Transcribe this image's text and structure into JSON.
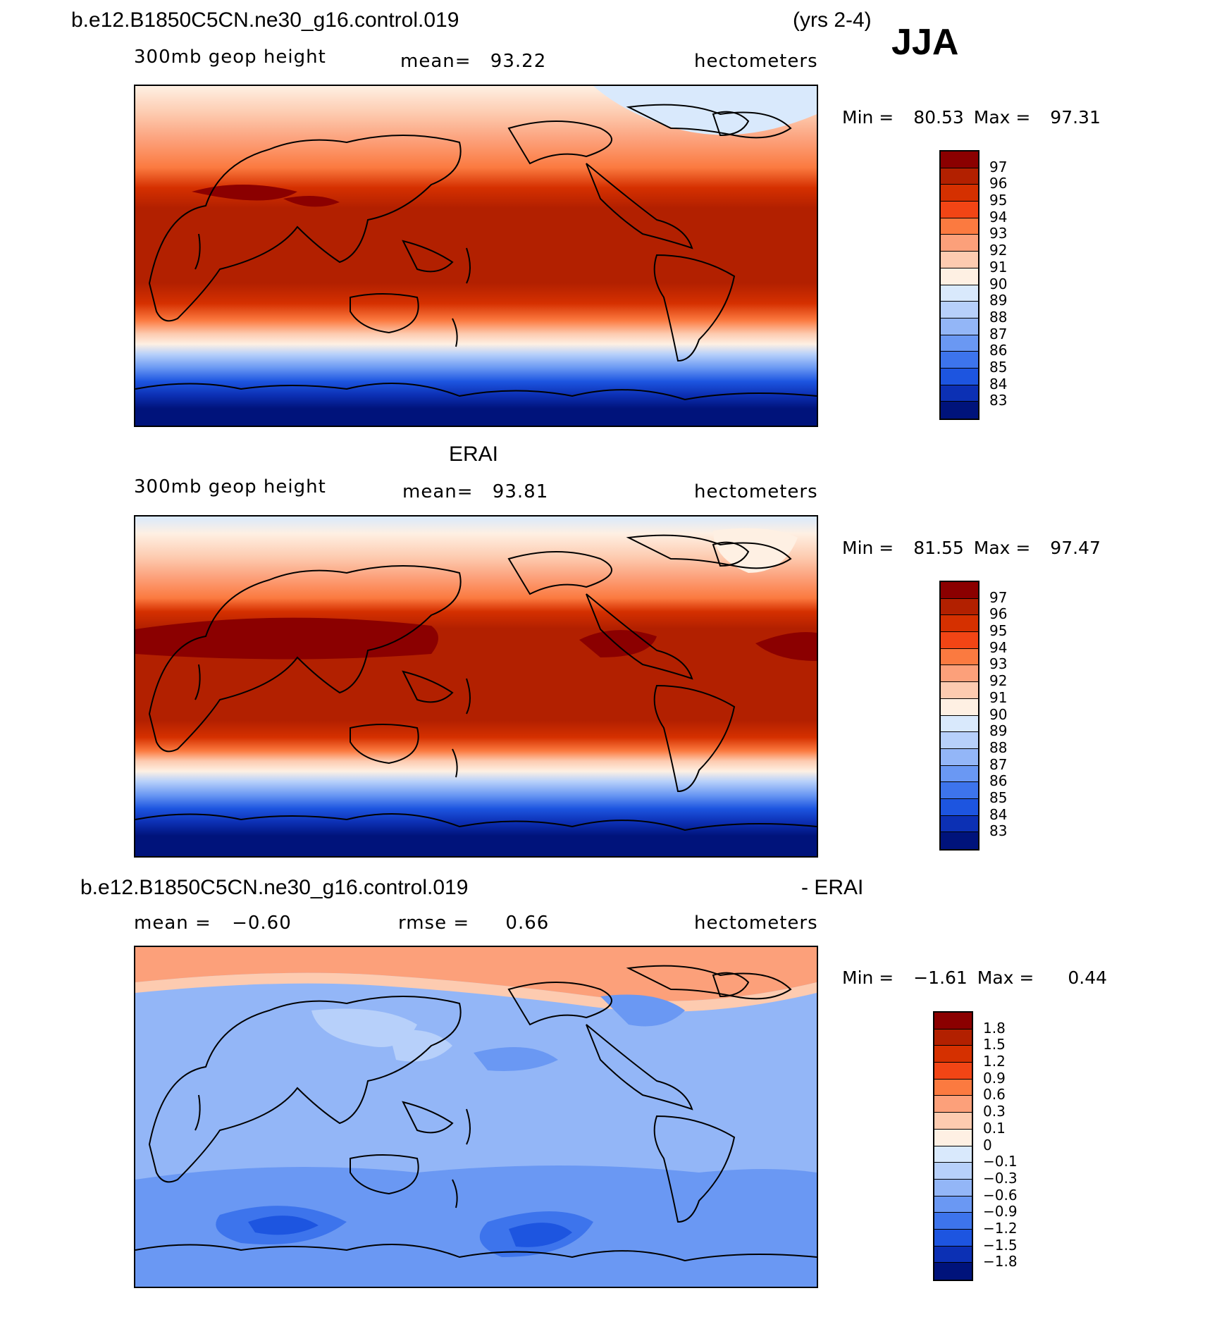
{
  "figure": {
    "case_name": "b.e12.B1850C5CN.ne30_g16.control.019",
    "years": "(yrs 2-4)",
    "season": "JJA"
  },
  "panels": [
    {
      "id": "model",
      "title_left": "b.e12.B1850C5CN.ne30_g16.control.019",
      "variable": "300mb geop height",
      "mean_label": "mean=",
      "mean_value": "93.22",
      "units": "hectometers",
      "min_label": "Min =",
      "min_value": "80.53",
      "max_label": "Max =",
      "max_value": "97.31",
      "levels": [
        "97",
        "96",
        "95",
        "94",
        "93",
        "92",
        "91",
        "90",
        "89",
        "88",
        "87",
        "86",
        "85",
        "84",
        "83"
      ],
      "colors": [
        "#8b0000",
        "#b22000",
        "#d53000",
        "#f24515",
        "#fb7a40",
        "#fca07a",
        "#fdcbb0",
        "#fef0e3",
        "#d9e9fc",
        "#b7d0fa",
        "#93b6f7",
        "#6a98f3",
        "#3d74ec",
        "#1d55e0",
        "#0c30b4",
        "#00137b"
      ]
    },
    {
      "id": "obs",
      "title_center": "ERAI",
      "variable": "300mb geop height",
      "mean_label": "mean=",
      "mean_value": "93.81",
      "units": "hectometers",
      "min_label": "Min =",
      "min_value": "81.55",
      "max_label": "Max =",
      "max_value": "97.47",
      "levels": [
        "97",
        "96",
        "95",
        "94",
        "93",
        "92",
        "91",
        "90",
        "89",
        "88",
        "87",
        "86",
        "85",
        "84",
        "83"
      ],
      "colors": [
        "#8b0000",
        "#b22000",
        "#d53000",
        "#f24515",
        "#fb7a40",
        "#fca07a",
        "#fdcbb0",
        "#fef0e3",
        "#d9e9fc",
        "#b7d0fa",
        "#93b6f7",
        "#6a98f3",
        "#3d74ec",
        "#1d55e0",
        "#0c30b4",
        "#00137b"
      ]
    },
    {
      "id": "diff",
      "title_left": "b.e12.B1850C5CN.ne30_g16.control.019",
      "title_right": "- ERAI",
      "mean_label": "mean =",
      "mean_value": "−0.60",
      "rmse_label": "rmse =",
      "rmse_value": "0.66",
      "units": "hectometers",
      "min_label": "Min =",
      "min_value": "−1.61",
      "max_label": "Max =",
      "max_value": "0.44",
      "levels": [
        "1.8",
        "1.5",
        "1.2",
        "0.9",
        "0.6",
        "0.3",
        "0.1",
        "0",
        "−0.1",
        "−0.3",
        "−0.6",
        "−0.9",
        "−1.2",
        "−1.5",
        "−1.8"
      ],
      "colors": [
        "#8b0000",
        "#b22000",
        "#d53000",
        "#f24515",
        "#fb7a40",
        "#fca07a",
        "#fdcbb0",
        "#fef0e3",
        "#d9e9fc",
        "#b7d0fa",
        "#93b6f7",
        "#6a98f3",
        "#3d74ec",
        "#1d55e0",
        "#0c30b4",
        "#00137b"
      ]
    }
  ]
}
